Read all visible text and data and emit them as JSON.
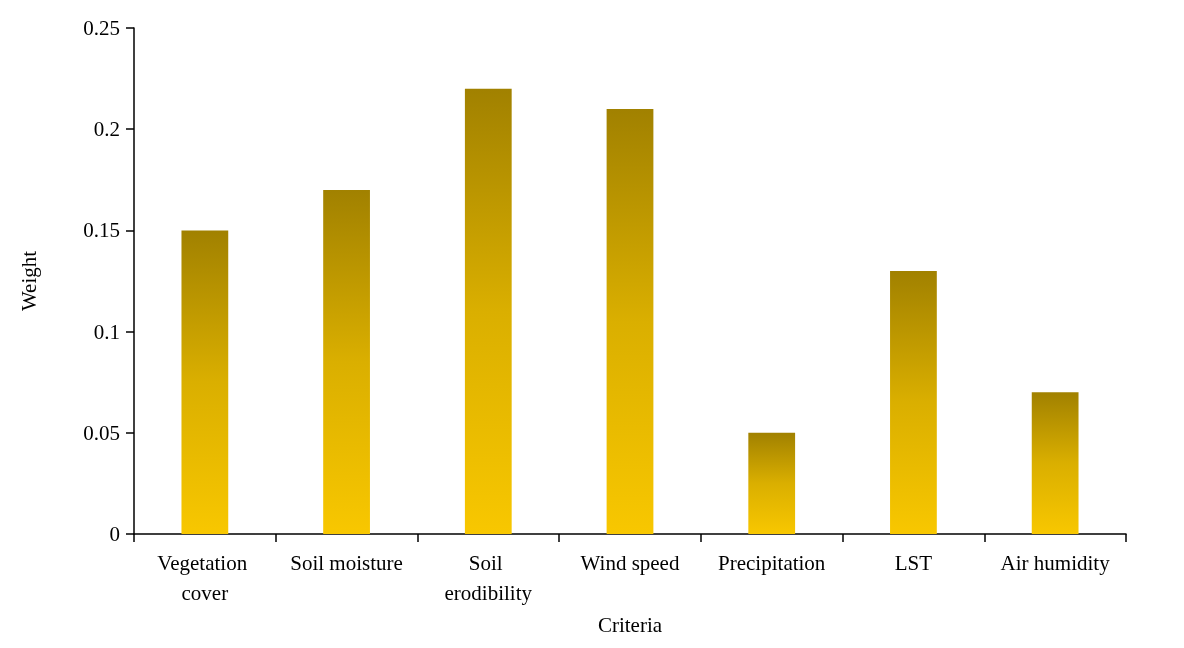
{
  "chart_data": {
    "type": "bar",
    "xlabel": "Criteria",
    "ylabel": "Weight",
    "categories": [
      "Vegetation cover",
      "Soil moisture",
      "Soil erodibility",
      "Wind speed",
      "Precipitation",
      "LST",
      "Air humidity"
    ],
    "values": [
      0.15,
      0.17,
      0.22,
      0.21,
      0.05,
      0.13,
      0.07
    ],
    "color": "#f8c700",
    "ylim": [
      0,
      0.25
    ],
    "yticks": [
      0,
      0.05,
      0.1,
      0.15,
      0.2,
      0.25
    ],
    "grid": false
  }
}
